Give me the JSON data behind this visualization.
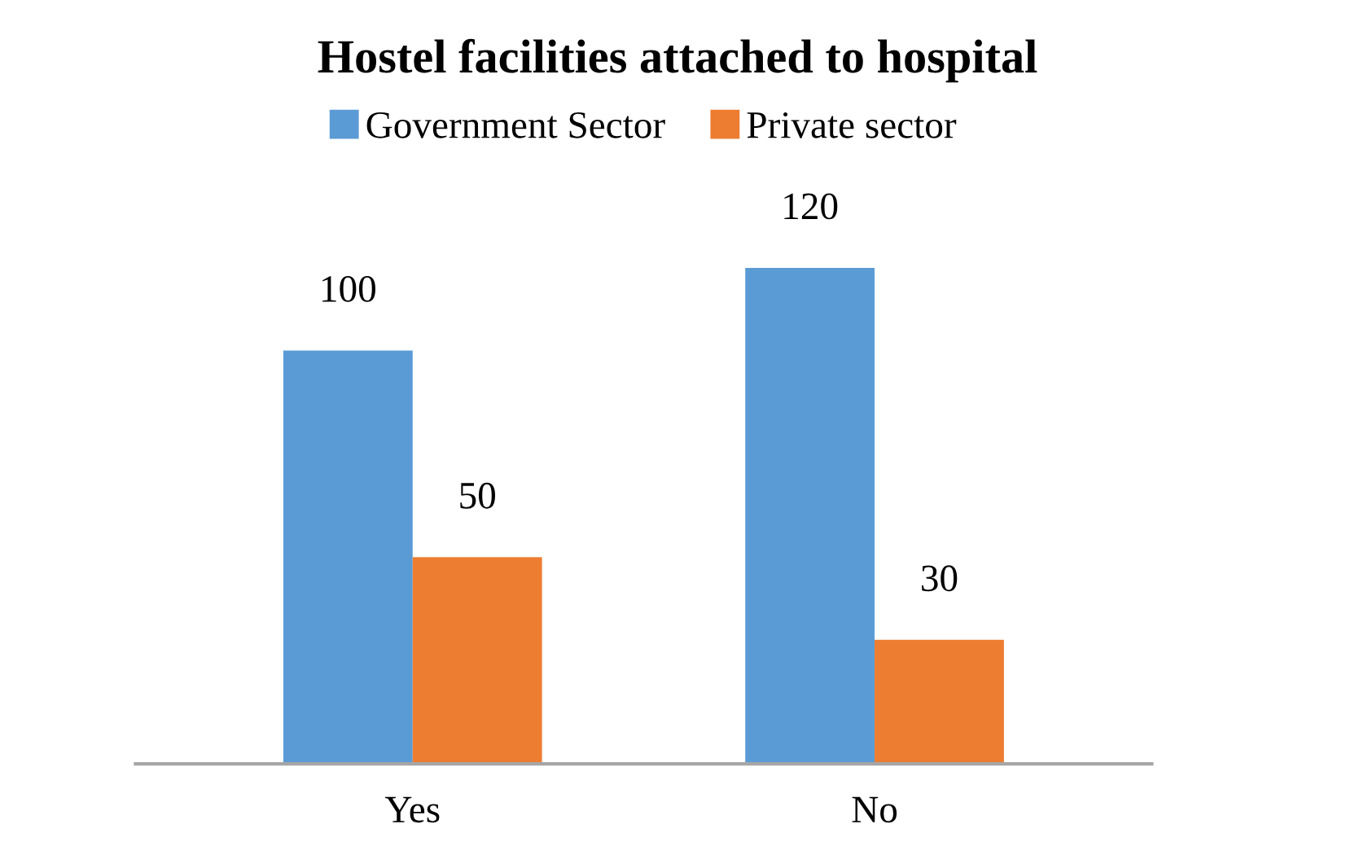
{
  "chart_data": {
    "type": "bar",
    "title": "Hostel facilities attached to hospital",
    "categories": [
      "Yes",
      "No"
    ],
    "series": [
      {
        "name": "Government Sector",
        "color": "#5b9bd5",
        "values": [
          100,
          120
        ]
      },
      {
        "name": "Private sector",
        "color": "#ed7d31",
        "values": [
          50,
          30
        ]
      }
    ],
    "data_labels": true,
    "legend": "top"
  }
}
